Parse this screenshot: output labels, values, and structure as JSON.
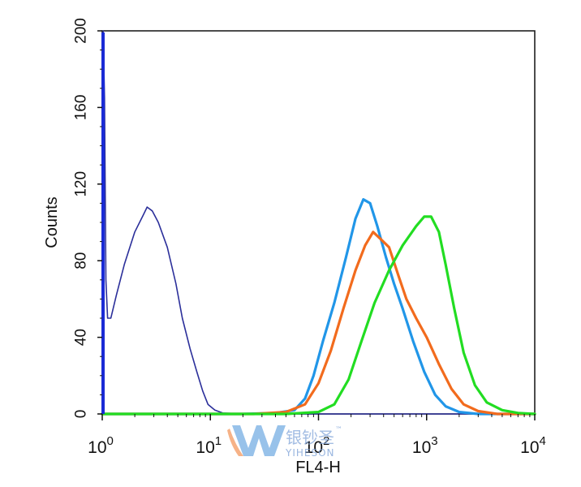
{
  "chart_data": {
    "type": "line",
    "title": "",
    "xlabel": "FL4-H",
    "ylabel": "Counts",
    "xscale": "log",
    "xlim": [
      1,
      10000
    ],
    "ylim": [
      0,
      200
    ],
    "grid": false,
    "legend": "none",
    "y_ticks": [
      "0",
      "40",
      "80",
      "120",
      "160",
      "200"
    ],
    "x_ticks": [
      {
        "base": "10",
        "exp": "0"
      },
      {
        "base": "10",
        "exp": "1"
      },
      {
        "base": "10",
        "exp": "2"
      },
      {
        "base": "10",
        "exp": "3"
      },
      {
        "base": "10",
        "exp": "4"
      }
    ],
    "series": [
      {
        "color": "#2b2f9a",
        "points": [
          [
            1.02,
            200
          ],
          [
            1.05,
            165
          ],
          [
            1.08,
            70
          ],
          [
            1.12,
            50
          ],
          [
            1.2,
            50
          ],
          [
            1.35,
            62
          ],
          [
            1.6,
            78
          ],
          [
            2.0,
            95
          ],
          [
            2.4,
            104
          ],
          [
            2.6,
            108
          ],
          [
            2.9,
            106
          ],
          [
            3.3,
            100
          ],
          [
            4.0,
            87
          ],
          [
            4.8,
            68
          ],
          [
            5.5,
            50
          ],
          [
            6.5,
            34
          ],
          [
            7.5,
            22
          ],
          [
            8.5,
            12
          ],
          [
            9.5,
            5
          ],
          [
            11,
            2
          ],
          [
            13,
            0.5
          ],
          [
            20,
            0
          ],
          [
            60,
            0
          ],
          [
            10000,
            0
          ]
        ]
      },
      {
        "color": "#2196e8",
        "points": [
          [
            1,
            0
          ],
          [
            20,
            0
          ],
          [
            40,
            0.5
          ],
          [
            60,
            2
          ],
          [
            75,
            8
          ],
          [
            90,
            20
          ],
          [
            110,
            38
          ],
          [
            140,
            58
          ],
          [
            180,
            82
          ],
          [
            220,
            102
          ],
          [
            260,
            112
          ],
          [
            300,
            110
          ],
          [
            350,
            98
          ],
          [
            420,
            82
          ],
          [
            500,
            68
          ],
          [
            600,
            55
          ],
          [
            750,
            38
          ],
          [
            950,
            22
          ],
          [
            1200,
            10
          ],
          [
            1500,
            4
          ],
          [
            2000,
            1
          ],
          [
            3000,
            0
          ],
          [
            10000,
            0
          ]
        ]
      },
      {
        "color": "#f26b1d",
        "points": [
          [
            1,
            0
          ],
          [
            25,
            0
          ],
          [
            50,
            1
          ],
          [
            75,
            5
          ],
          [
            100,
            16
          ],
          [
            130,
            33
          ],
          [
            170,
            55
          ],
          [
            220,
            75
          ],
          [
            270,
            88
          ],
          [
            320,
            95
          ],
          [
            380,
            91
          ],
          [
            450,
            87
          ],
          [
            550,
            72
          ],
          [
            650,
            60
          ],
          [
            800,
            50
          ],
          [
            1000,
            40
          ],
          [
            1300,
            26
          ],
          [
            1700,
            13
          ],
          [
            2200,
            5
          ],
          [
            3000,
            1.5
          ],
          [
            4500,
            0
          ],
          [
            10000,
            0
          ]
        ]
      },
      {
        "color": "#22dd22",
        "points": [
          [
            1,
            0
          ],
          [
            50,
            0
          ],
          [
            100,
            1
          ],
          [
            140,
            5
          ],
          [
            190,
            18
          ],
          [
            250,
            38
          ],
          [
            330,
            58
          ],
          [
            450,
            75
          ],
          [
            600,
            88
          ],
          [
            800,
            98
          ],
          [
            950,
            103
          ],
          [
            1100,
            103
          ],
          [
            1300,
            95
          ],
          [
            1500,
            78
          ],
          [
            1800,
            55
          ],
          [
            2200,
            32
          ],
          [
            2800,
            15
          ],
          [
            3600,
            6
          ],
          [
            5000,
            2
          ],
          [
            7000,
            0.5
          ],
          [
            10000,
            0
          ]
        ]
      }
    ]
  },
  "watermark": {
    "chinese": "银钞圣",
    "latin": "YIHESON",
    "tm": "™"
  }
}
